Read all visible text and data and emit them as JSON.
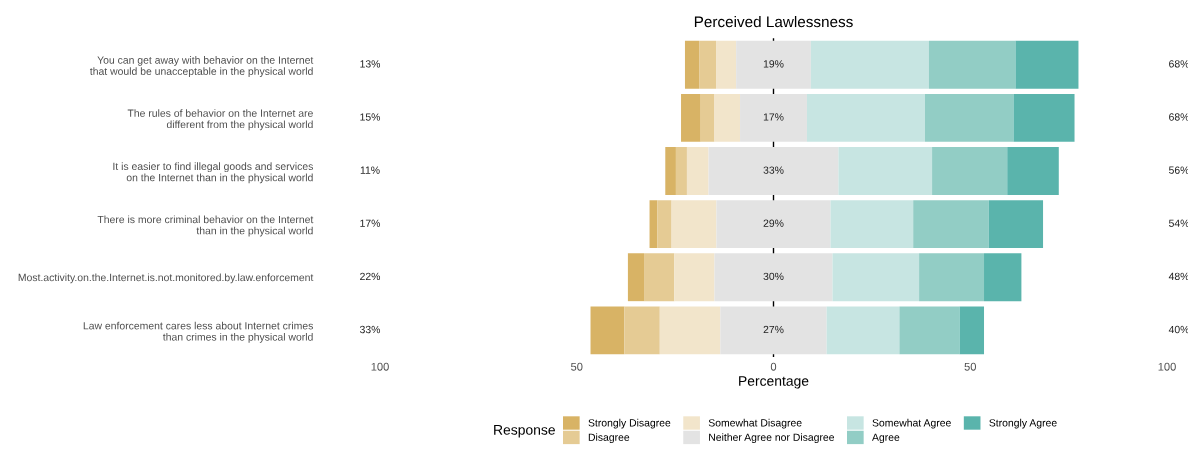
{
  "chart_data": {
    "type": "bar",
    "orientation": "horizontal",
    "title": "Perceived Lawlessness",
    "xlabel": "Percentage",
    "legend_title": "Response",
    "legend": "bottom",
    "grid": false,
    "categories": [
      "You can get away with behavior on the Internet\nthat would be unacceptable in the physical world",
      "The rules of behavior on the Internet are\ndifferent from the physical world",
      "It is easier to find illegal goods and services\non the Internet than in the physical world",
      "There is more criminal behavior on the Internet\nthan in the physical world",
      "Most.activity.on.the.Internet.is.not.monitored.by.law.enforcement",
      "Law enforcement cares less about Internet crimes\nthan crimes in the physical world"
    ],
    "series": [
      {
        "name": "Strongly Disagree",
        "color": "#d8b365",
        "values": [
          3.6,
          5,
          2.7,
          2,
          4.1,
          8.6
        ],
        "base": [
          -22.5,
          -23.5,
          -27.5,
          -31.5,
          -37,
          -46.5
        ]
      },
      {
        "name": "Disagree",
        "color": "#e5cb94",
        "values": [
          4.3,
          3.5,
          2.8,
          3.6,
          7.7,
          9.0
        ],
        "base": [
          -18.9,
          -18.5,
          -24.8,
          -29.5,
          -32.9,
          -37.9
        ]
      },
      {
        "name": "Somewhat Disagree",
        "color": "#f2e5cb",
        "values": [
          5.1,
          6.5,
          5.5,
          11.4,
          10.2,
          15.4
        ],
        "base": [
          -14.6,
          -15,
          -22,
          -25.9,
          -25.2,
          -28.9
        ]
      },
      {
        "name": "Neither Agree nor Disagree",
        "color": "#e3e3e3",
        "values": [
          19,
          17,
          33,
          29,
          30,
          27
        ],
        "base": [
          -9.5,
          -8.5,
          -16.5,
          -14.5,
          -15,
          -13.5
        ],
        "value_labels": [
          "19%",
          "17%",
          "33%",
          "29%",
          "30%",
          "27%"
        ]
      },
      {
        "name": "Somewhat Agree",
        "color": "#c7e5e2",
        "values": [
          30,
          30,
          23.8,
          21,
          22,
          18.5
        ],
        "base": [
          9.5,
          8.5,
          16.5,
          14.5,
          15,
          13.5
        ]
      },
      {
        "name": "Agree",
        "color": "#92cdc5",
        "values": [
          22,
          22.5,
          19.1,
          19.2,
          16.5,
          15.3
        ],
        "base": [
          39.5,
          38.5,
          40.3,
          35.5,
          37,
          32
        ]
      },
      {
        "name": "Strongly Agree",
        "color": "#5ab4ac",
        "values": [
          16,
          15.5,
          13.1,
          13.8,
          9.5,
          6.2
        ],
        "base": [
          61.5,
          61,
          59.4,
          54.7,
          53.5,
          47.3
        ]
      }
    ],
    "annotations": [
      "13%",
      "15%",
      "11%",
      "17%",
      "22%",
      "33%",
      "68%",
      "68%",
      "56%",
      "54%",
      "48%",
      "40%"
    ],
    "ref_lines": [
      {
        "axis": "x",
        "value": 0,
        "color": "#000000"
      }
    ],
    "xlim": [
      -100,
      100
    ],
    "xticks": [
      {
        "value": -100,
        "label": "100"
      },
      {
        "value": -50,
        "label": "50"
      },
      0,
      50,
      100
    ]
  }
}
